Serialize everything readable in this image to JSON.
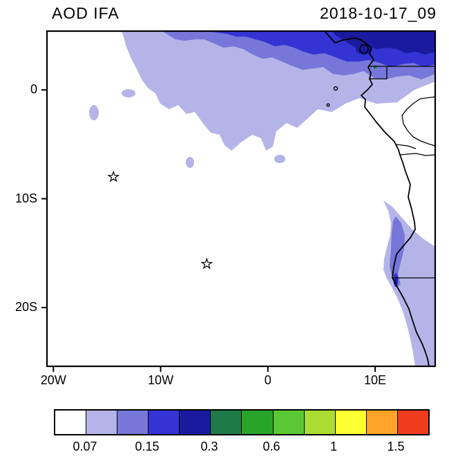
{
  "header": {
    "title": "AOD IFA",
    "date": "2018-10-17_09"
  },
  "chart_data": {
    "type": "heatmap",
    "title": "AOD IFA",
    "timestamp_label": "2018-10-17_09",
    "variable": "AOD (aerosol optical depth), filled contours over the SE Atlantic and SW Africa",
    "axes": {
      "lon_range": [
        -20.6,
        15.6
      ],
      "lat_range": [
        -25.4,
        5.4
      ],
      "x_ticks": [
        {
          "lon": -20,
          "label": "20W"
        },
        {
          "lon": -10,
          "label": "10W"
        },
        {
          "lon": 0,
          "label": "0"
        },
        {
          "lon": 10,
          "label": "10E"
        }
      ],
      "y_ticks": [
        {
          "lat": 0,
          "label": "0"
        },
        {
          "lat": -10,
          "label": "10S"
        },
        {
          "lat": -20,
          "label": "20S"
        }
      ],
      "grid": false
    },
    "colorbar": {
      "orientation": "horizontal",
      "segments": 12,
      "colors": [
        "#ffffff",
        "#b4b4e8",
        "#7677d8",
        "#3434d4",
        "#1a1a9e",
        "#1e7a46",
        "#28a428",
        "#5ac832",
        "#aadc32",
        "#ffff32",
        "#ffa428",
        "#f03c1e"
      ],
      "tick_labels": [
        "0.07",
        "0.15",
        "0.3",
        "0.6",
        "1",
        "1.5"
      ],
      "tick_positions": [
        1,
        3,
        5,
        7,
        9,
        11
      ]
    },
    "markers": [
      {
        "id": "star-1",
        "symbol": "star",
        "lon": -14.4,
        "lat": -8.0
      },
      {
        "id": "star-2",
        "symbol": "star",
        "lon": -5.7,
        "lat": -16.0
      }
    ],
    "features": [
      {
        "region": "Equatorial Atlantic / Gulf of Guinea plume",
        "aod": "0.07 to >0.3",
        "extent": "from about 7W to 15.5E north of ~4S, intensifying toward the top edge (~2-5N) where values exceed 0.15-0.3"
      },
      {
        "region": "Angola-Namibia coastal strip",
        "aod": "0.07-0.3",
        "extent": "about 10.5S to 25S hugging the coast, local maximum near 16-18S"
      }
    ]
  }
}
